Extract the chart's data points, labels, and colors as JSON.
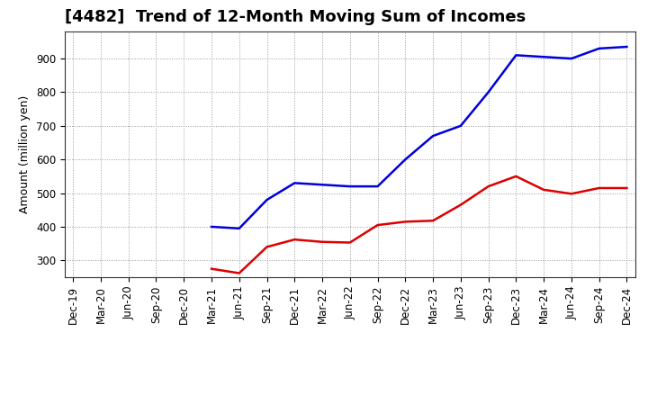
{
  "title": "[4482]  Trend of 12-Month Moving Sum of Incomes",
  "ylabel": "Amount (million yen)",
  "background_color": "#ffffff",
  "plot_bg_color": "#ffffff",
  "grid_color": "#999999",
  "title_fontsize": 13,
  "label_fontsize": 9,
  "tick_fontsize": 8.5,
  "xlabels": [
    "Dec-19",
    "Mar-20",
    "Jun-20",
    "Sep-20",
    "Dec-20",
    "Mar-21",
    "Jun-21",
    "Sep-21",
    "Dec-21",
    "Mar-22",
    "Jun-22",
    "Sep-22",
    "Dec-22",
    "Mar-23",
    "Jun-23",
    "Sep-23",
    "Dec-23",
    "Mar-24",
    "Jun-24",
    "Sep-24",
    "Dec-24"
  ],
  "ordinary_income": [
    null,
    null,
    null,
    null,
    null,
    400,
    395,
    480,
    530,
    525,
    520,
    520,
    600,
    670,
    700,
    800,
    910,
    905,
    900,
    930,
    935
  ],
  "net_income": [
    null,
    null,
    null,
    null,
    null,
    275,
    262,
    340,
    362,
    355,
    353,
    405,
    415,
    418,
    465,
    520,
    550,
    510,
    498,
    515,
    515
  ],
  "ordinary_color": "#0000dd",
  "net_color": "#dd0000",
  "ylim_min": 250,
  "ylim_max": 980,
  "yticks": [
    300,
    400,
    500,
    600,
    700,
    800,
    900
  ],
  "line_width": 1.8,
  "legend_ncol": 2
}
